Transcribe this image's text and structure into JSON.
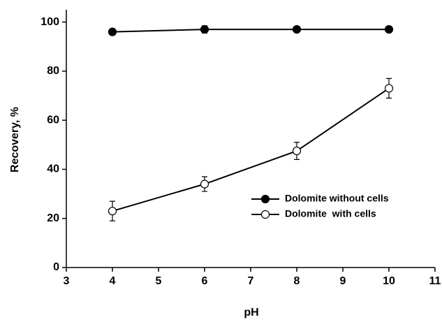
{
  "chart_data": {
    "type": "line",
    "x_label": "pH",
    "y_label": "Recovery, %",
    "xlim": [
      3,
      11
    ],
    "xticks": [
      3,
      4,
      5,
      6,
      7,
      8,
      9,
      10,
      11
    ],
    "ylim": [
      0,
      105
    ],
    "yticks": [
      0,
      20,
      40,
      60,
      80,
      100
    ],
    "legend": "lower right",
    "series": [
      {
        "name": "Dolomite without cells",
        "color": "#000000",
        "marker_fill": "#000000",
        "x": [
          4,
          6,
          8,
          10
        ],
        "values": [
          96,
          97,
          97,
          97
        ],
        "errors": [
          1,
          1.5,
          1,
          1.2
        ]
      },
      {
        "name": "Dolomite  with cells",
        "color": "#000000",
        "marker_fill": "#ffffff",
        "x": [
          4,
          6,
          8,
          10
        ],
        "values": [
          23,
          34,
          47.5,
          73
        ],
        "errors": [
          4,
          3,
          3.5,
          4
        ]
      }
    ]
  }
}
